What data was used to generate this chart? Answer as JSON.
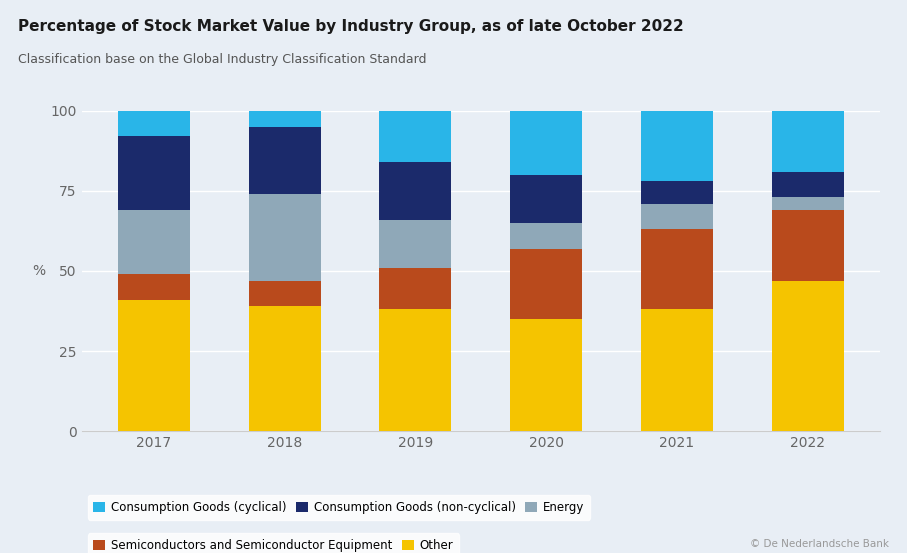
{
  "title": "Percentage of Stock Market Value by Industry Group, as of late October 2022",
  "subtitle": "Classification base on the Global Industry Classification Standard",
  "ylabel": "%",
  "years": [
    "2017",
    "2018",
    "2019",
    "2020",
    "2021",
    "2022"
  ],
  "categories": [
    "Other",
    "Semiconductors and Semiconductor Equipment",
    "Energy",
    "Consumption Goods (non-cyclical)",
    "Consumption Goods (cyclical)"
  ],
  "colors": [
    "#F5C400",
    "#B94A1C",
    "#8FA8B8",
    "#1B2A6B",
    "#29B5E8"
  ],
  "values": {
    "Other": [
      41,
      39,
      38,
      35,
      38,
      47
    ],
    "Semiconductors and Semiconductor Equipment": [
      8,
      8,
      13,
      22,
      25,
      22
    ],
    "Energy": [
      20,
      27,
      15,
      8,
      8,
      4
    ],
    "Consumption Goods (non-cyclical)": [
      23,
      21,
      18,
      15,
      7,
      8
    ],
    "Consumption Goods (cyclical)": [
      8,
      5,
      16,
      20,
      22,
      19
    ]
  },
  "background_color": "#E8EEF5",
  "plot_bg_color": "#E8EEF5",
  "ylim": [
    0,
    100
  ],
  "yticks": [
    0,
    25,
    50,
    75,
    100
  ],
  "bar_width": 0.55,
  "watermark": "© De Nederlandsche Bank",
  "title_fontsize": 11,
  "subtitle_fontsize": 9,
  "tick_fontsize": 10,
  "legend_fontsize": 8.5,
  "grid_color": "#FFFFFF",
  "spine_color": "#CCCCCC",
  "tick_color": "#666666"
}
